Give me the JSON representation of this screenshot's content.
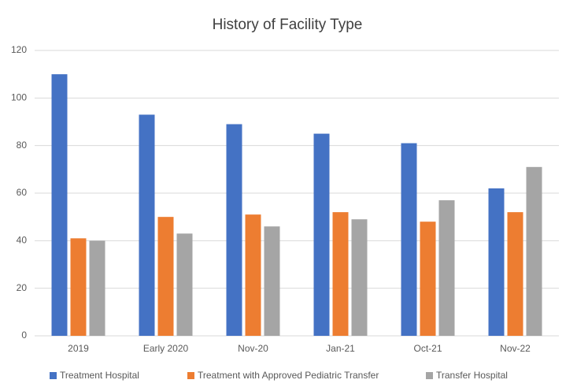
{
  "chart_data": {
    "type": "bar",
    "title": "History of Facility Type",
    "categories": [
      "2019",
      "Early 2020",
      "Nov-20",
      "Jan-21",
      "Oct-21",
      "Nov-22"
    ],
    "series": [
      {
        "name": "Treatment Hospital",
        "color": "#4472c4",
        "values": [
          110,
          93,
          89,
          85,
          81,
          62
        ]
      },
      {
        "name": "Treatment with Approved Pediatric Transfer",
        "color": "#ed7d31",
        "values": [
          41,
          50,
          51,
          52,
          48,
          52
        ]
      },
      {
        "name": "Transfer Hospital",
        "color": "#a5a5a5",
        "values": [
          40,
          43,
          46,
          49,
          57,
          71
        ]
      }
    ],
    "ylim": [
      0,
      120
    ],
    "yticks": [
      0,
      20,
      40,
      60,
      80,
      100,
      120
    ],
    "grid": true,
    "legend": "bottom"
  }
}
